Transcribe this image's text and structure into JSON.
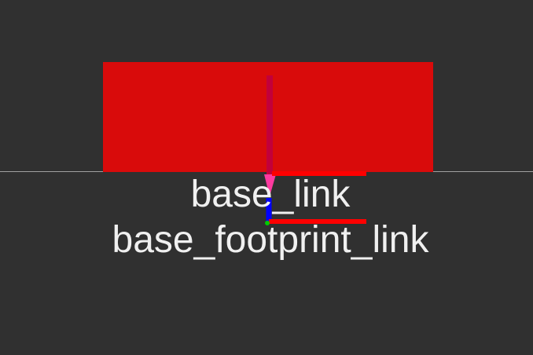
{
  "scene": {
    "background_color": "#303030",
    "grid_color": "#a0a0a0",
    "robot_body_color": "#d90b0b"
  },
  "frames": [
    {
      "label": "base_link"
    },
    {
      "label": "base_footprint_link"
    }
  ],
  "axis_colors": {
    "x": "#ff0000",
    "y": "#00cc00",
    "z": "#0000ff",
    "pointer": "#ff3aa0",
    "z_line": "#c2003a"
  }
}
